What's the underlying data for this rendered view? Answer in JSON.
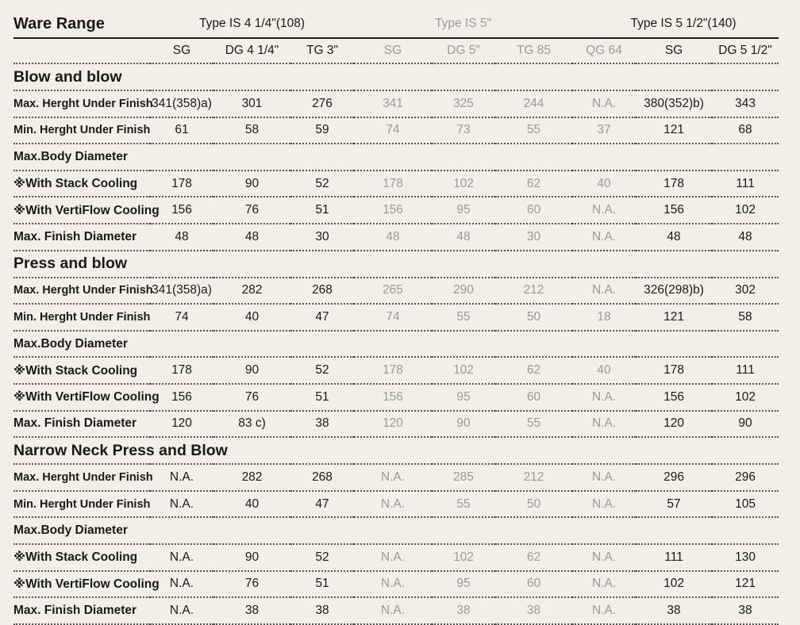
{
  "title": "Ware Range",
  "groups": [
    {
      "label": "Type IS 4 1/4\"(108)"
    },
    {
      "label": "Type IS 5\""
    },
    {
      "label": "Type IS  5 1/2\"(140)"
    }
  ],
  "columns": [
    "SG",
    "DG 4 1/4\"",
    "TG 3\"",
    "SG",
    "DG 5\"",
    "TG 85",
    "QG 64",
    "SG",
    "DG  5 1/2\""
  ],
  "sections": [
    {
      "title": "Blow and blow",
      "rows": [
        {
          "label": "Max. Herght Under Finish",
          "values": [
            "341(358)a)",
            "301",
            "276",
            "341",
            "325",
            "244",
            "N.A.",
            "380(352)b)",
            "343"
          ]
        },
        {
          "label": "Min. Herght Under Finish",
          "values": [
            "61",
            "58",
            "59",
            "74",
            "73",
            "55",
            "37",
            "121",
            "68"
          ]
        },
        {
          "label": "Max.Body Diameter",
          "values": [
            "",
            "",
            "",
            "",
            "",
            "",
            "",
            "",
            ""
          ]
        },
        {
          "label": "※With Stack Cooling",
          "values": [
            "178",
            "90",
            "52",
            "178",
            "102",
            "62",
            "40",
            "178",
            "111"
          ]
        },
        {
          "label": "※With VertiFlow Cooling",
          "values": [
            "156",
            "76",
            "51",
            "156",
            "95",
            "60",
            "N.A.",
            "156",
            "102"
          ]
        },
        {
          "label": "Max. Finish Diameter",
          "values": [
            "48",
            "48",
            "30",
            "48",
            "48",
            "30",
            "N.A.",
            "48",
            "48"
          ]
        }
      ]
    },
    {
      "title": "Press and blow",
      "rows": [
        {
          "label": "Max. Herght Under Finish",
          "values": [
            "341(358)a)",
            "282",
            "268",
            "265",
            "290",
            "212",
            "N.A.",
            "326(298)b)",
            "302"
          ]
        },
        {
          "label": "Min. Herght Under Finish",
          "values": [
            "74",
            "40",
            "47",
            "74",
            "55",
            "50",
            "18",
            "121",
            "58"
          ]
        },
        {
          "label": "Max.Body Diameter",
          "values": [
            "",
            "",
            "",
            "",
            "",
            "",
            "",
            "",
            ""
          ]
        },
        {
          "label": "※With Stack Cooling",
          "values": [
            "178",
            "90",
            "52",
            "178",
            "102",
            "62",
            "40",
            "178",
            "111"
          ]
        },
        {
          "label": "※With VertiFlow Cooling",
          "values": [
            "156",
            "76",
            "51",
            "156",
            "95",
            "60",
            "N.A.",
            "156",
            "102"
          ]
        },
        {
          "label": "Max. Finish Diameter",
          "values": [
            "120",
            "83 c)",
            "38",
            "120",
            "90",
            "55",
            "N.A.",
            "120",
            "90"
          ]
        }
      ]
    },
    {
      "title": "Narrow Neck Press and Blow",
      "rows": [
        {
          "label": "Max. Herght Under Finish",
          "values": [
            "N.A.",
            "282",
            "268",
            "N.A.",
            "285",
            "212",
            "N.A.",
            "296",
            "296"
          ]
        },
        {
          "label": "Min. Herght Under Finish",
          "values": [
            "N.A.",
            "40",
            "47",
            "N.A.",
            "55",
            "50",
            "N.A.",
            "57",
            "105"
          ]
        },
        {
          "label": "Max.Body Diameter",
          "values": [
            "",
            "",
            "",
            "",
            "",
            "",
            "",
            "",
            ""
          ]
        },
        {
          "label": "※With Stack Cooling",
          "values": [
            "N.A.",
            "90",
            "52",
            "N.A.",
            "102",
            "62",
            "N.A.",
            "111",
            "130"
          ]
        },
        {
          "label": "※With VertiFlow Cooling",
          "values": [
            "N.A.",
            "76",
            "51",
            "N.A.",
            "95",
            "60",
            "N.A.",
            "102",
            "121"
          ]
        },
        {
          "label": "Max. Finish Diameter",
          "values": [
            "N.A.",
            "38",
            "38",
            "N.A.",
            "38",
            "38",
            "N.A.",
            "38",
            "38"
          ]
        }
      ]
    }
  ],
  "colors": {
    "background": "#f1efe8",
    "text": "#1a1a1a",
    "muted": "#9a9a9a"
  }
}
